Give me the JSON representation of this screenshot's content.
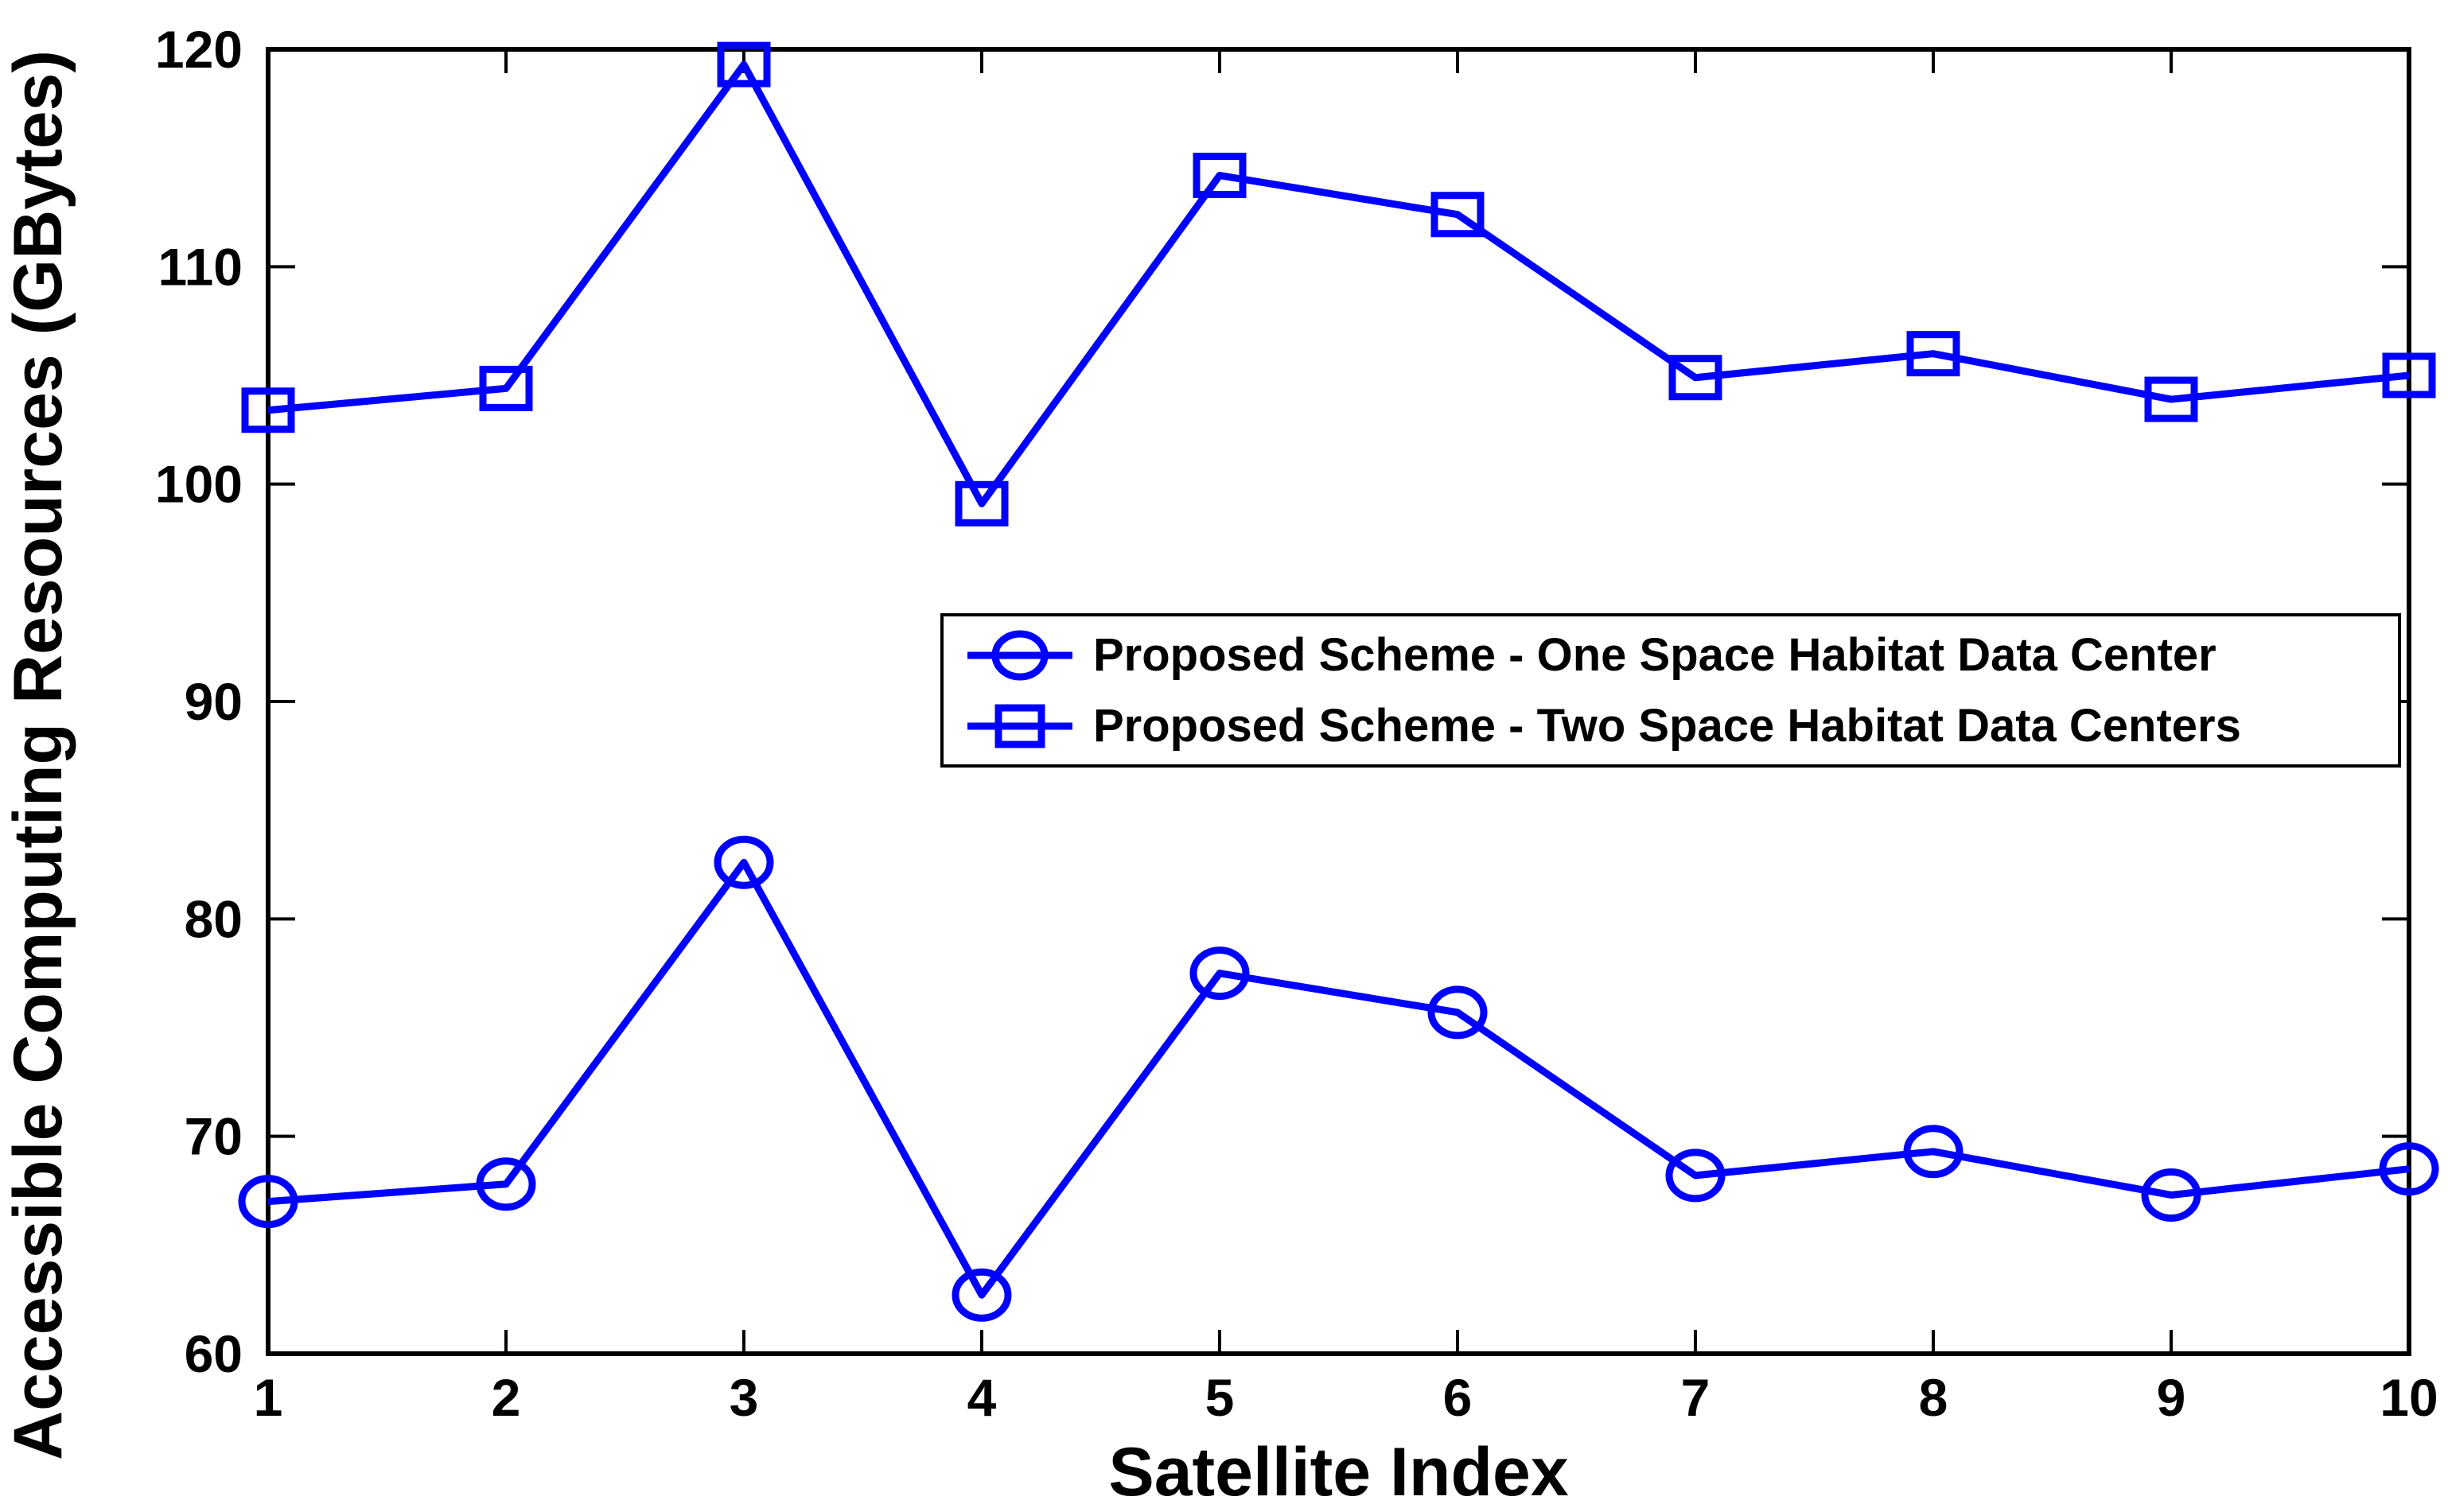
{
  "figure": {
    "background": "#FFFFFF",
    "series_color": "#0000FF",
    "axis_color": "#000000"
  },
  "chart_data": {
    "type": "line",
    "title": "",
    "xlabel": "Satellite Index",
    "ylabel": "Accessible Computing Resources (GBytes)",
    "xlim": [
      1,
      10
    ],
    "ylim": [
      60,
      120
    ],
    "grid": false,
    "legend_position": "middle-right-inside",
    "x": [
      1,
      2,
      3,
      4,
      5,
      6,
      7,
      8,
      9,
      10
    ],
    "x_tick_labels": [
      "1",
      "2",
      "3",
      "4",
      "5",
      "6",
      "7",
      "8",
      "9",
      "10"
    ],
    "y_ticks": [
      60,
      70,
      80,
      90,
      100,
      110,
      120
    ],
    "y_tick_labels": [
      "60",
      "70",
      "80",
      "90",
      "100",
      "110",
      "120"
    ],
    "series": [
      {
        "name": "Proposed Scheme - One Space Habitat Data Center",
        "marker": "circle",
        "color": "#0000FF",
        "values": [
          67.0,
          67.8,
          82.6,
          62.7,
          77.5,
          75.7,
          68.2,
          69.3,
          67.3,
          68.5
        ]
      },
      {
        "name": "Proposed Scheme - Two Space Habitat Data Centers",
        "marker": "square",
        "color": "#0000FF",
        "values": [
          103.4,
          104.4,
          119.3,
          99.1,
          114.2,
          112.4,
          104.9,
          106.0,
          103.9,
          105.0
        ]
      }
    ]
  }
}
